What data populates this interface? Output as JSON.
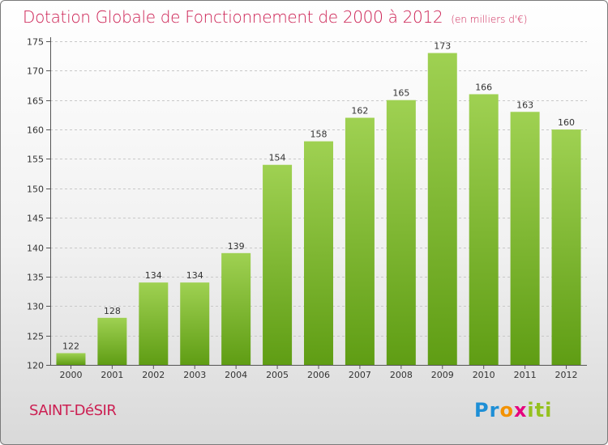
{
  "header": {
    "title": "Dotation Globale de Fonctionnement de 2000 à 2012",
    "unit_note": "(en milliers d'€)"
  },
  "footer": {
    "commune": "SAINT-DéSIR",
    "logo": "Proxiti"
  },
  "colors": {
    "accent": "#cc1f52",
    "bar_top": "#9fd152",
    "bar_bottom": "#5f9d14"
  },
  "chart_data": {
    "type": "bar",
    "categories": [
      "2000",
      "2001",
      "2002",
      "2003",
      "2004",
      "2005",
      "2006",
      "2007",
      "2008",
      "2009",
      "2010",
      "2011",
      "2012"
    ],
    "values": [
      122,
      128,
      134,
      134,
      139,
      154,
      158,
      162,
      165,
      173,
      166,
      163,
      160
    ],
    "ylim": [
      120,
      175
    ],
    "yticks": [
      120,
      125,
      130,
      135,
      140,
      145,
      150,
      155,
      160,
      165,
      170,
      175
    ],
    "grid": "horizontal dashed",
    "legend": "none"
  }
}
